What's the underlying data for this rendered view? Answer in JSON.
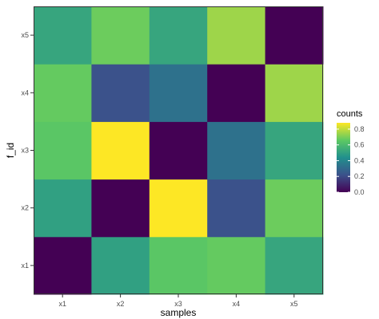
{
  "chart_data": {
    "type": "heatmap",
    "title": "",
    "xlabel": "samples",
    "ylabel": "f_id",
    "x_categories": [
      "x1",
      "x2",
      "x3",
      "x4",
      "x5"
    ],
    "y_categories": [
      "x1",
      "x2",
      "x3",
      "x4",
      "x5"
    ],
    "values": [
      {
        "x": "x1",
        "y": "x1",
        "value": 0.0
      },
      {
        "x": "x2",
        "y": "x1",
        "value": 0.5
      },
      {
        "x": "x3",
        "y": "x1",
        "value": 0.65
      },
      {
        "x": "x4",
        "y": "x1",
        "value": 0.67
      },
      {
        "x": "x5",
        "y": "x1",
        "value": 0.52
      },
      {
        "x": "x1",
        "y": "x2",
        "value": 0.5
      },
      {
        "x": "x2",
        "y": "x2",
        "value": 0.0
      },
      {
        "x": "x3",
        "y": "x2",
        "value": 0.88
      },
      {
        "x": "x4",
        "y": "x2",
        "value": 0.22
      },
      {
        "x": "x5",
        "y": "x2",
        "value": 0.68
      },
      {
        "x": "x1",
        "y": "x3",
        "value": 0.65
      },
      {
        "x": "x2",
        "y": "x3",
        "value": 0.88
      },
      {
        "x": "x3",
        "y": "x3",
        "value": 0.0
      },
      {
        "x": "x4",
        "y": "x3",
        "value": 0.33
      },
      {
        "x": "x5",
        "y": "x3",
        "value": 0.52
      },
      {
        "x": "x1",
        "y": "x4",
        "value": 0.67
      },
      {
        "x": "x2",
        "y": "x4",
        "value": 0.22
      },
      {
        "x": "x3",
        "y": "x4",
        "value": 0.33
      },
      {
        "x": "x4",
        "y": "x4",
        "value": 0.0
      },
      {
        "x": "x5",
        "y": "x4",
        "value": 0.75
      },
      {
        "x": "x1",
        "y": "x5",
        "value": 0.52
      },
      {
        "x": "x2",
        "y": "x5",
        "value": 0.68
      },
      {
        "x": "x3",
        "y": "x5",
        "value": 0.52
      },
      {
        "x": "x4",
        "y": "x5",
        "value": 0.75
      },
      {
        "x": "x5",
        "y": "x5",
        "value": 0.0
      }
    ],
    "color_scale": {
      "name": "viridis",
      "domain": [
        0,
        0.88
      ],
      "colors": [
        "#440154",
        "#3b528b",
        "#21908d",
        "#5dc963",
        "#fde725"
      ]
    },
    "legend": {
      "title": "counts",
      "placement": "right",
      "ticks": [
        0.0,
        0.2,
        0.4,
        0.6,
        0.8
      ],
      "tick_labels": [
        "0.0",
        "0.2",
        "0.4",
        "0.6",
        "0.8"
      ]
    },
    "grid": false
  }
}
